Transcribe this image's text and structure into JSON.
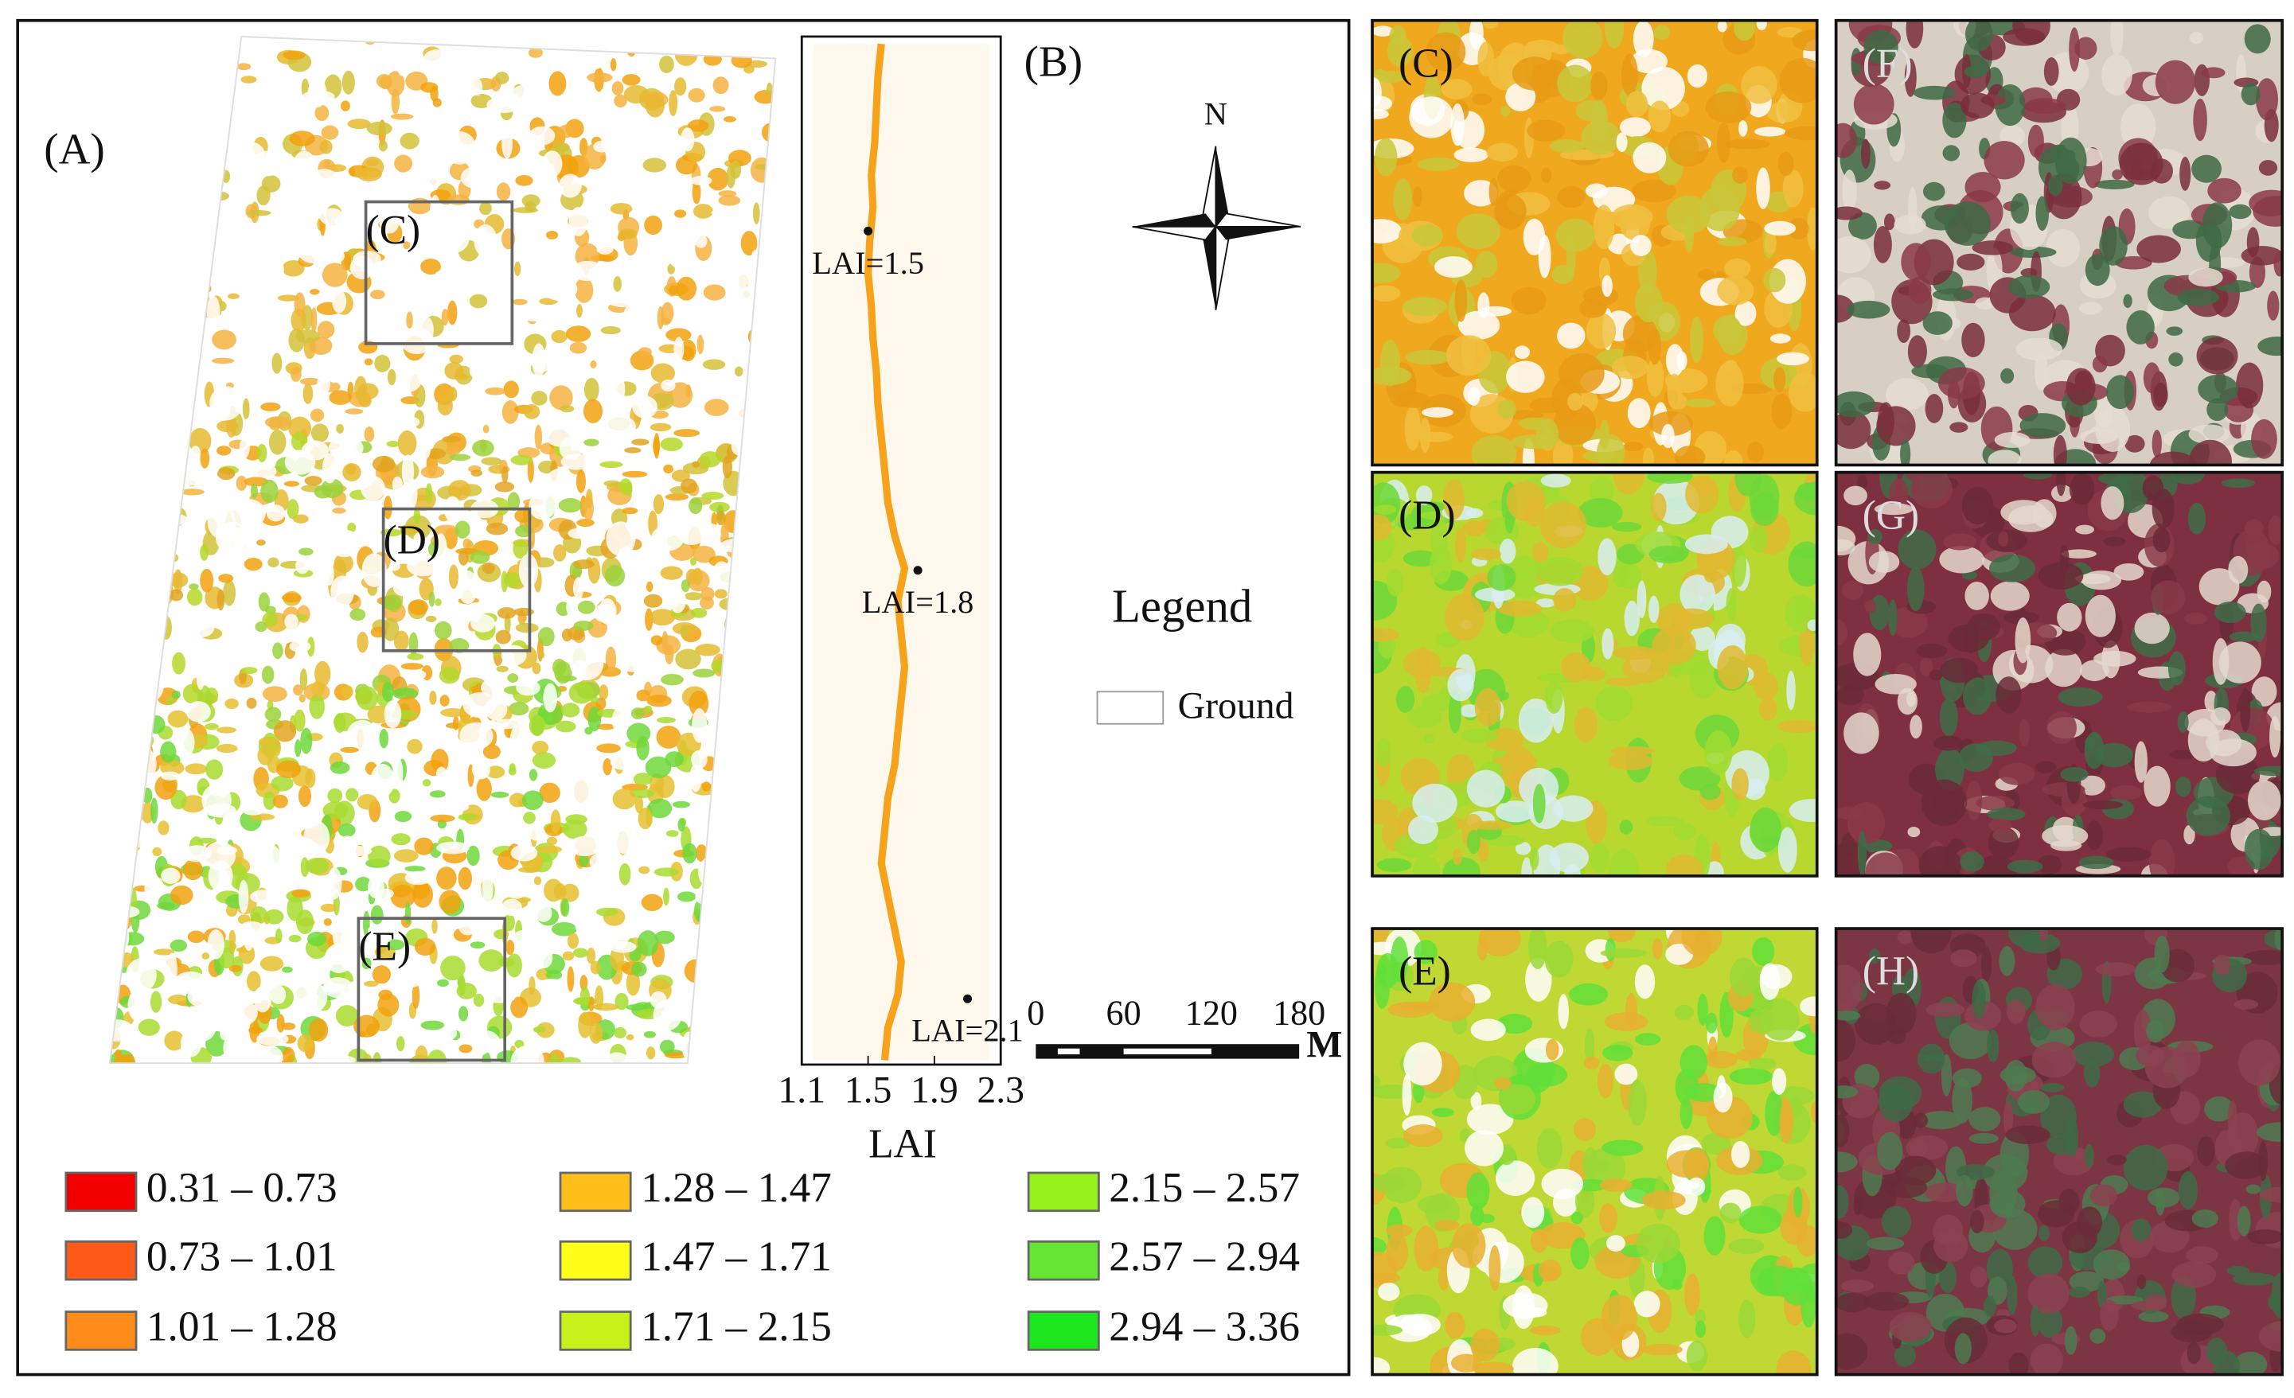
{
  "panel_a": {
    "label": "(A)",
    "boxes": [
      "(C)",
      "(D)",
      "(E)"
    ]
  },
  "profile": {
    "label": "(B)",
    "xlabel": "LAI",
    "xlim": [
      1.1,
      2.3
    ],
    "xticks": [
      1.1,
      1.5,
      1.9,
      2.3
    ],
    "color": "#f7a21b",
    "values": [
      1.58,
      1.56,
      1.55,
      1.54,
      1.52,
      1.53,
      1.51,
      1.5,
      1.52,
      1.53,
      1.55,
      1.56,
      1.58,
      1.6,
      1.62,
      1.66,
      1.72,
      1.68,
      1.7,
      1.72,
      1.7,
      1.68,
      1.66,
      1.62,
      1.6,
      1.58,
      1.62,
      1.66,
      1.7,
      1.68,
      1.62,
      1.6
    ],
    "annotations": [
      {
        "label": "LAI=1.5",
        "value": 1.5
      },
      {
        "label": "LAI=1.8",
        "value": 1.8
      },
      {
        "label": "LAI=2.1",
        "value": 2.1
      }
    ]
  },
  "north": "N",
  "legend": {
    "title": "Legend",
    "ground": "Ground"
  },
  "scale_bar": {
    "ticks": [
      0,
      60,
      120,
      180
    ],
    "unit": "M"
  },
  "classes": [
    {
      "label": "0.31 – 0.73",
      "color": "#f20000"
    },
    {
      "label": "0.73 – 1.01",
      "color": "#ff5a1a"
    },
    {
      "label": "1.01 – 1.28",
      "color": "#ff8c1a"
    },
    {
      "label": "1.28 – 1.47",
      "color": "#ffbe1a"
    },
    {
      "label": "1.47 – 1.71",
      "color": "#ffff1a"
    },
    {
      "label": "1.71 – 2.15",
      "color": "#c8f01a"
    },
    {
      "label": "2.15 – 2.57",
      "color": "#96f01a"
    },
    {
      "label": "2.57 – 2.94",
      "color": "#64e632"
    },
    {
      "label": "2.94 – 3.36",
      "color": "#1ee61e"
    }
  ],
  "detail_panels": [
    "(C)",
    "(D)",
    "(E)",
    "(F)",
    "(G)",
    "(H)"
  ]
}
